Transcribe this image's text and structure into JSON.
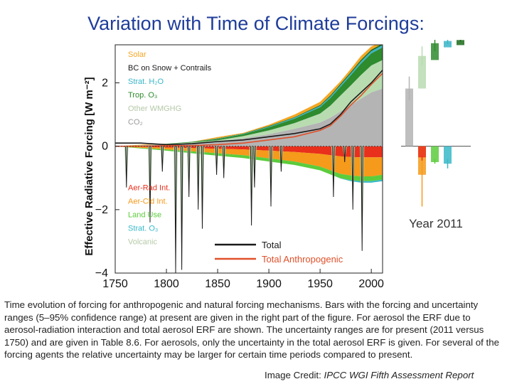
{
  "slide": {
    "title": "Variation with Time of Climate Forcings:",
    "caption": "Time evolution of forcing for anthropogenic and natural forcing mechanisms. Bars with the forcing and uncertainty ranges (5–95% confidence range) at present are given in the right part of the figure. For aerosol the ERF due to aerosol-radiation interaction and total aerosol ERF are shown. The uncertainty ranges are for present (2011 versus 1750) and are given in Table 8.6. For aerosols, only the uncertainty in the total aerosol ERF is given. For several of the forcing agents the relative uncertainty may be larger for certain time periods compared to present.",
    "credit_prefix": "Image Credit: ",
    "credit_source": "IPCC WGI Fifth Assessment Report"
  },
  "colors": {
    "title": "#1f3d9a",
    "solar": "#f5a623",
    "bc_snow_contrails": "#1a6b1a",
    "strat_h2o": "#3ab5c8",
    "trop_o3": "#2e8b2e",
    "other_wmghg": "#b8dcb0",
    "co2": "#b4b4b4",
    "aer_rad": "#e8301c",
    "aer_cld": "#f59a1a",
    "land_use": "#5ccc3c",
    "strat_o3": "#38b8c8",
    "volcanic": "#c0ddb8",
    "total": "#1a1a1a",
    "total_anthropogenic": "#e0502a"
  },
  "chart_data": {
    "type": "area",
    "xlim": [
      1750,
      2011
    ],
    "ylim": [
      -4,
      3.2
    ],
    "ylabel": "Effective Radiative Forcing [W m⁻²]",
    "xticks": [
      "1750",
      "1800",
      "1850",
      "1900",
      "1950",
      "2000"
    ],
    "yticks": [
      "−4",
      "−2",
      "0",
      "2"
    ],
    "legend_positive": [
      "Solar",
      "BC on Snow + Contrails",
      "Strat. H₂O",
      "Trop. O₃",
      "Other WMGHG",
      "CO₂"
    ],
    "legend_negative": [
      "Aer-Rad Int.",
      "Aer-Cld Int.",
      "Land Use",
      "Strat. O₃",
      "Volcanic"
    ],
    "legend_lines": [
      "Total",
      "Total Anthropogenic"
    ],
    "x": [
      1750,
      1775,
      1800,
      1825,
      1850,
      1875,
      1900,
      1925,
      1950,
      1960,
      1970,
      1980,
      1990,
      2000,
      2011
    ],
    "positive_series": [
      {
        "name": "CO₂",
        "values": [
          0.0,
          0.03,
          0.06,
          0.1,
          0.15,
          0.25,
          0.38,
          0.55,
          0.75,
          0.9,
          1.1,
          1.3,
          1.5,
          1.7,
          1.82
        ]
      },
      {
        "name": "Other WMGHG",
        "values": [
          0.0,
          0.0,
          0.01,
          0.02,
          0.04,
          0.07,
          0.12,
          0.18,
          0.28,
          0.38,
          0.5,
          0.62,
          0.75,
          0.85,
          0.9
        ]
      },
      {
        "name": "Trop. O₃",
        "values": [
          0.0,
          0.0,
          0.01,
          0.02,
          0.04,
          0.06,
          0.1,
          0.14,
          0.2,
          0.24,
          0.28,
          0.32,
          0.36,
          0.38,
          0.4
        ]
      },
      {
        "name": "Strat. H₂O",
        "values": [
          0.0,
          0.0,
          0.0,
          0.0,
          0.01,
          0.01,
          0.02,
          0.03,
          0.04,
          0.05,
          0.05,
          0.06,
          0.07,
          0.07,
          0.07
        ]
      },
      {
        "name": "BC on Snow + Contrails",
        "values": [
          0.0,
          0.0,
          0.0,
          0.0,
          0.01,
          0.01,
          0.02,
          0.02,
          0.03,
          0.03,
          0.04,
          0.04,
          0.05,
          0.05,
          0.05
        ]
      },
      {
        "name": "Solar",
        "values": [
          0.0,
          0.02,
          0.0,
          0.0,
          0.04,
          0.02,
          0.04,
          0.08,
          0.1,
          0.12,
          0.08,
          0.1,
          0.12,
          0.1,
          0.05
        ]
      }
    ],
    "negative_series": [
      {
        "name": "Aer-Rad Int.",
        "values": [
          0.0,
          -0.02,
          -0.04,
          -0.06,
          -0.08,
          -0.1,
          -0.14,
          -0.18,
          -0.24,
          -0.28,
          -0.32,
          -0.34,
          -0.35,
          -0.35,
          -0.35
        ]
      },
      {
        "name": "Aer-Cld Int.",
        "values": [
          0.0,
          -0.03,
          -0.06,
          -0.1,
          -0.14,
          -0.18,
          -0.24,
          -0.3,
          -0.4,
          -0.48,
          -0.55,
          -0.58,
          -0.6,
          -0.6,
          -0.55
        ]
      },
      {
        "name": "Land Use",
        "values": [
          0.0,
          -0.02,
          -0.04,
          -0.06,
          -0.08,
          -0.09,
          -0.1,
          -0.11,
          -0.12,
          -0.13,
          -0.14,
          -0.15,
          -0.15,
          -0.15,
          -0.15
        ]
      },
      {
        "name": "Strat. O₃",
        "values": [
          0.0,
          0.0,
          0.0,
          0.0,
          0.0,
          0.0,
          0.0,
          0.0,
          0.0,
          0.0,
          -0.01,
          -0.03,
          -0.05,
          -0.05,
          -0.05
        ]
      }
    ],
    "total_anthropogenic": [
      0.0,
      0.0,
      0.02,
      0.02,
      0.05,
      0.1,
      0.2,
      0.3,
      0.5,
      0.65,
      0.95,
      1.3,
      1.6,
      1.95,
      2.3
    ],
    "total_base": [
      0.1,
      0.1,
      0.05,
      0.08,
      0.15,
      0.2,
      0.3,
      0.4,
      0.55,
      0.7,
      1.0,
      1.4,
      1.7,
      2.0,
      2.4
    ],
    "volcanic_events": [
      {
        "year": 1761,
        "value": -1.3
      },
      {
        "year": 1784,
        "value": -2.4
      },
      {
        "year": 1796,
        "value": -0.8
      },
      {
        "year": 1809,
        "value": -4.0
      },
      {
        "year": 1815,
        "value": -3.9
      },
      {
        "year": 1822,
        "value": -1.6
      },
      {
        "year": 1831,
        "value": -2.0
      },
      {
        "year": 1835,
        "value": -2.6
      },
      {
        "year": 1849,
        "value": -0.9
      },
      {
        "year": 1856,
        "value": -1.0
      },
      {
        "year": 1883,
        "value": -2.5
      },
      {
        "year": 1886,
        "value": -1.3
      },
      {
        "year": 1902,
        "value": -1.9
      },
      {
        "year": 1912,
        "value": -0.8
      },
      {
        "year": 1963,
        "value": -1.6
      },
      {
        "year": 1974,
        "value": -0.5
      },
      {
        "year": 1982,
        "value": -2.0
      },
      {
        "year": 1991,
        "value": -3.3
      }
    ],
    "bars_2011": {
      "label": "Year 2011",
      "bars": [
        {
          "name": "CO₂",
          "value": 1.82,
          "low": 1.44,
          "high": 2.2
        },
        {
          "name": "Other WMGHG",
          "value": 2.85,
          "low": 2.55,
          "high": 3.15
        },
        {
          "name": "Trop. O₃",
          "value": 3.25,
          "low": 3.0,
          "high": 3.4
        },
        {
          "name": "Strat. H₂O",
          "value": 3.32,
          "low": 3.22,
          "high": 3.4
        },
        {
          "name": "BC on Snow + Contrails",
          "value": 3.35,
          "low": 3.3,
          "high": 3.4
        },
        {
          "name": "Aer-Cld Int.",
          "value": -0.9,
          "low": -1.9,
          "high": -0.1
        },
        {
          "name": "Aer-Rad Int.",
          "value": -0.35,
          "low": -0.45,
          "high": -0.3
        },
        {
          "name": "Land Use",
          "value": -0.5,
          "low": -0.55,
          "high": -0.4
        },
        {
          "name": "Strat. O₃",
          "value": -0.55,
          "low": -0.7,
          "high": -0.4
        }
      ]
    }
  }
}
